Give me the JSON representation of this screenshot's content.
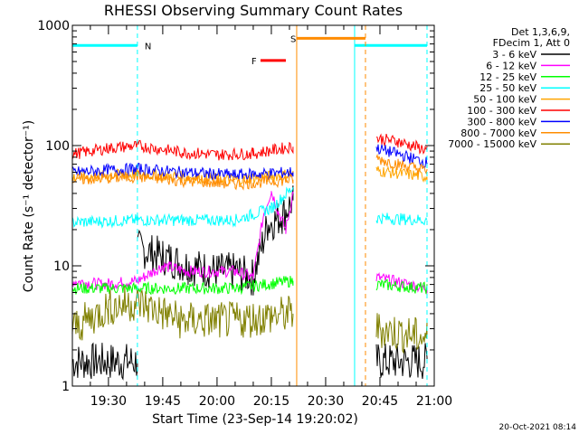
{
  "chart_data": {
    "type": "line",
    "title": "RHESSI Observing Summary Count Rates",
    "xlabel": "Start Time (23-Sep-14 19:20:02)",
    "ylabel": "Count Rate (s⁻¹ detector⁻¹)",
    "y_scale": "log",
    "ylim": [
      1,
      1000
    ],
    "y_ticks": [
      1,
      10,
      100,
      1000
    ],
    "y_tick_labels": [
      "1",
      "10",
      "100",
      "1000"
    ],
    "xlim": [
      "19:20:02",
      "21:00:00"
    ],
    "x_tick_labels": [
      "19:30",
      "19:45",
      "20:00",
      "20:15",
      "20:30",
      "20:45",
      "21:00"
    ],
    "timestamp": "20-Oct-2021 08:14",
    "legend": {
      "placement": "right",
      "header": [
        "Det 1,3,6,9,",
        "FDecim 1, Att 0"
      ]
    },
    "series": [
      {
        "name": "3 - 6 keV",
        "color": "#000000",
        "segments": [
          [
            [
              "19:20",
              1.6
            ],
            [
              "19:38",
              1.6
            ]
          ],
          [
            [
              "19:38",
              14
            ],
            [
              "19:45",
              12
            ],
            [
              "19:52",
              10
            ],
            [
              "20:00",
              9
            ],
            [
              "20:05",
              9
            ],
            [
              "20:10",
              8
            ],
            [
              "20:14",
              22
            ],
            [
              "20:18",
              26
            ],
            [
              "20:21",
              35
            ]
          ],
          [
            [
              "20:44",
              1.6
            ],
            [
              "20:58",
              1.6
            ]
          ]
        ]
      },
      {
        "name": "6 - 12 keV",
        "color": "#ff00ff",
        "segments": [
          [
            [
              "19:20",
              7.5
            ],
            [
              "19:28",
              7
            ],
            [
              "19:38",
              7.5
            ],
            [
              "19:45",
              10
            ],
            [
              "19:52",
              9
            ],
            [
              "20:00",
              9
            ],
            [
              "20:05",
              9
            ],
            [
              "20:10",
              8
            ],
            [
              "20:13",
              28
            ],
            [
              "20:15",
              42
            ],
            [
              "20:17",
              28
            ],
            [
              "20:19",
              20
            ],
            [
              "20:21",
              40
            ]
          ],
          [
            [
              "20:44",
              8
            ],
            [
              "20:58",
              6.5
            ]
          ]
        ]
      },
      {
        "name": "12 - 25 keV",
        "color": "#00ff00",
        "segments": [
          [
            [
              "19:20",
              6.5
            ],
            [
              "19:35",
              6.5
            ],
            [
              "19:50",
              6.5
            ],
            [
              "20:05",
              6.5
            ],
            [
              "20:21",
              7.5
            ]
          ],
          [
            [
              "20:44",
              7
            ],
            [
              "20:58",
              6.5
            ]
          ]
        ]
      },
      {
        "name": "25 - 50 keV",
        "color": "#00ffff",
        "segments": [
          [
            [
              "19:20",
              23
            ],
            [
              "19:38",
              24
            ],
            [
              "19:50",
              24
            ],
            [
              "20:05",
              24
            ],
            [
              "20:15",
              30
            ],
            [
              "20:21",
              45
            ]
          ],
          [
            [
              "20:44",
              25
            ],
            [
              "20:58",
              24
            ]
          ]
        ]
      },
      {
        "name": "50 - 100 keV",
        "color": "#ffa500",
        "segments": [
          [
            [
              "19:20",
              54
            ],
            [
              "19:38",
              58
            ],
            [
              "19:50",
              55
            ],
            [
              "20:05",
              52
            ],
            [
              "20:21",
              58
            ]
          ],
          [
            [
              "20:44",
              62
            ],
            [
              "20:58",
              55
            ]
          ]
        ]
      },
      {
        "name": "100 - 300 keV",
        "color": "#ff0000",
        "segments": [
          [
            [
              "19:20",
              85
            ],
            [
              "19:30",
              95
            ],
            [
              "19:38",
              100
            ],
            [
              "19:50",
              88
            ],
            [
              "20:00",
              84
            ],
            [
              "20:10",
              86
            ],
            [
              "20:21",
              98
            ]
          ],
          [
            [
              "20:44",
              115
            ],
            [
              "20:50",
              108
            ],
            [
              "20:58",
              92
            ]
          ]
        ]
      },
      {
        "name": "300 - 800 keV",
        "color": "#0000ff",
        "segments": [
          [
            [
              "19:20",
              60
            ],
            [
              "19:38",
              64
            ],
            [
              "19:50",
              60
            ],
            [
              "20:05",
              57
            ],
            [
              "20:21",
              60
            ]
          ],
          [
            [
              "20:44",
              95
            ],
            [
              "20:50",
              85
            ],
            [
              "20:58",
              72
            ]
          ]
        ]
      },
      {
        "name": "800 - 7000 keV",
        "color": "#ff8c00",
        "segments": [
          [
            [
              "19:20",
              52
            ],
            [
              "19:38",
              55
            ],
            [
              "19:50",
              51
            ],
            [
              "20:05",
              48
            ],
            [
              "20:21",
              52
            ]
          ],
          [
            [
              "20:44",
              78
            ],
            [
              "20:50",
              70
            ],
            [
              "20:58",
              62
            ]
          ]
        ]
      },
      {
        "name": "7000 - 15000 keV",
        "color": "#808000",
        "segments": [
          [
            [
              "19:20",
              3
            ],
            [
              "19:30",
              4.5
            ],
            [
              "19:38",
              5
            ],
            [
              "19:50",
              3.5
            ],
            [
              "20:05",
              3.5
            ],
            [
              "20:21",
              4
            ]
          ],
          [
            [
              "20:44",
              3
            ],
            [
              "20:58",
              2.5
            ]
          ]
        ]
      }
    ],
    "annotations": [
      {
        "label": "N",
        "color": "#00ffff",
        "kind": "night",
        "bars": [
          [
            "19:20",
            "19:38"
          ],
          [
            "20:38",
            "20:58"
          ]
        ],
        "lines": [
          "19:38",
          "20:38",
          "20:58"
        ],
        "bar_level": 680
      },
      {
        "label": "S",
        "color": "#ff8c00",
        "kind": "saa",
        "bars": [
          [
            "20:22",
            "20:41"
          ]
        ],
        "lines": [
          "20:22",
          "20:41"
        ],
        "bar_level": 780
      },
      {
        "label": "F",
        "color": "#ff0000",
        "kind": "flare",
        "bars": [
          [
            "20:12",
            "20:19"
          ]
        ],
        "lines": [],
        "bar_level": 510
      }
    ]
  }
}
